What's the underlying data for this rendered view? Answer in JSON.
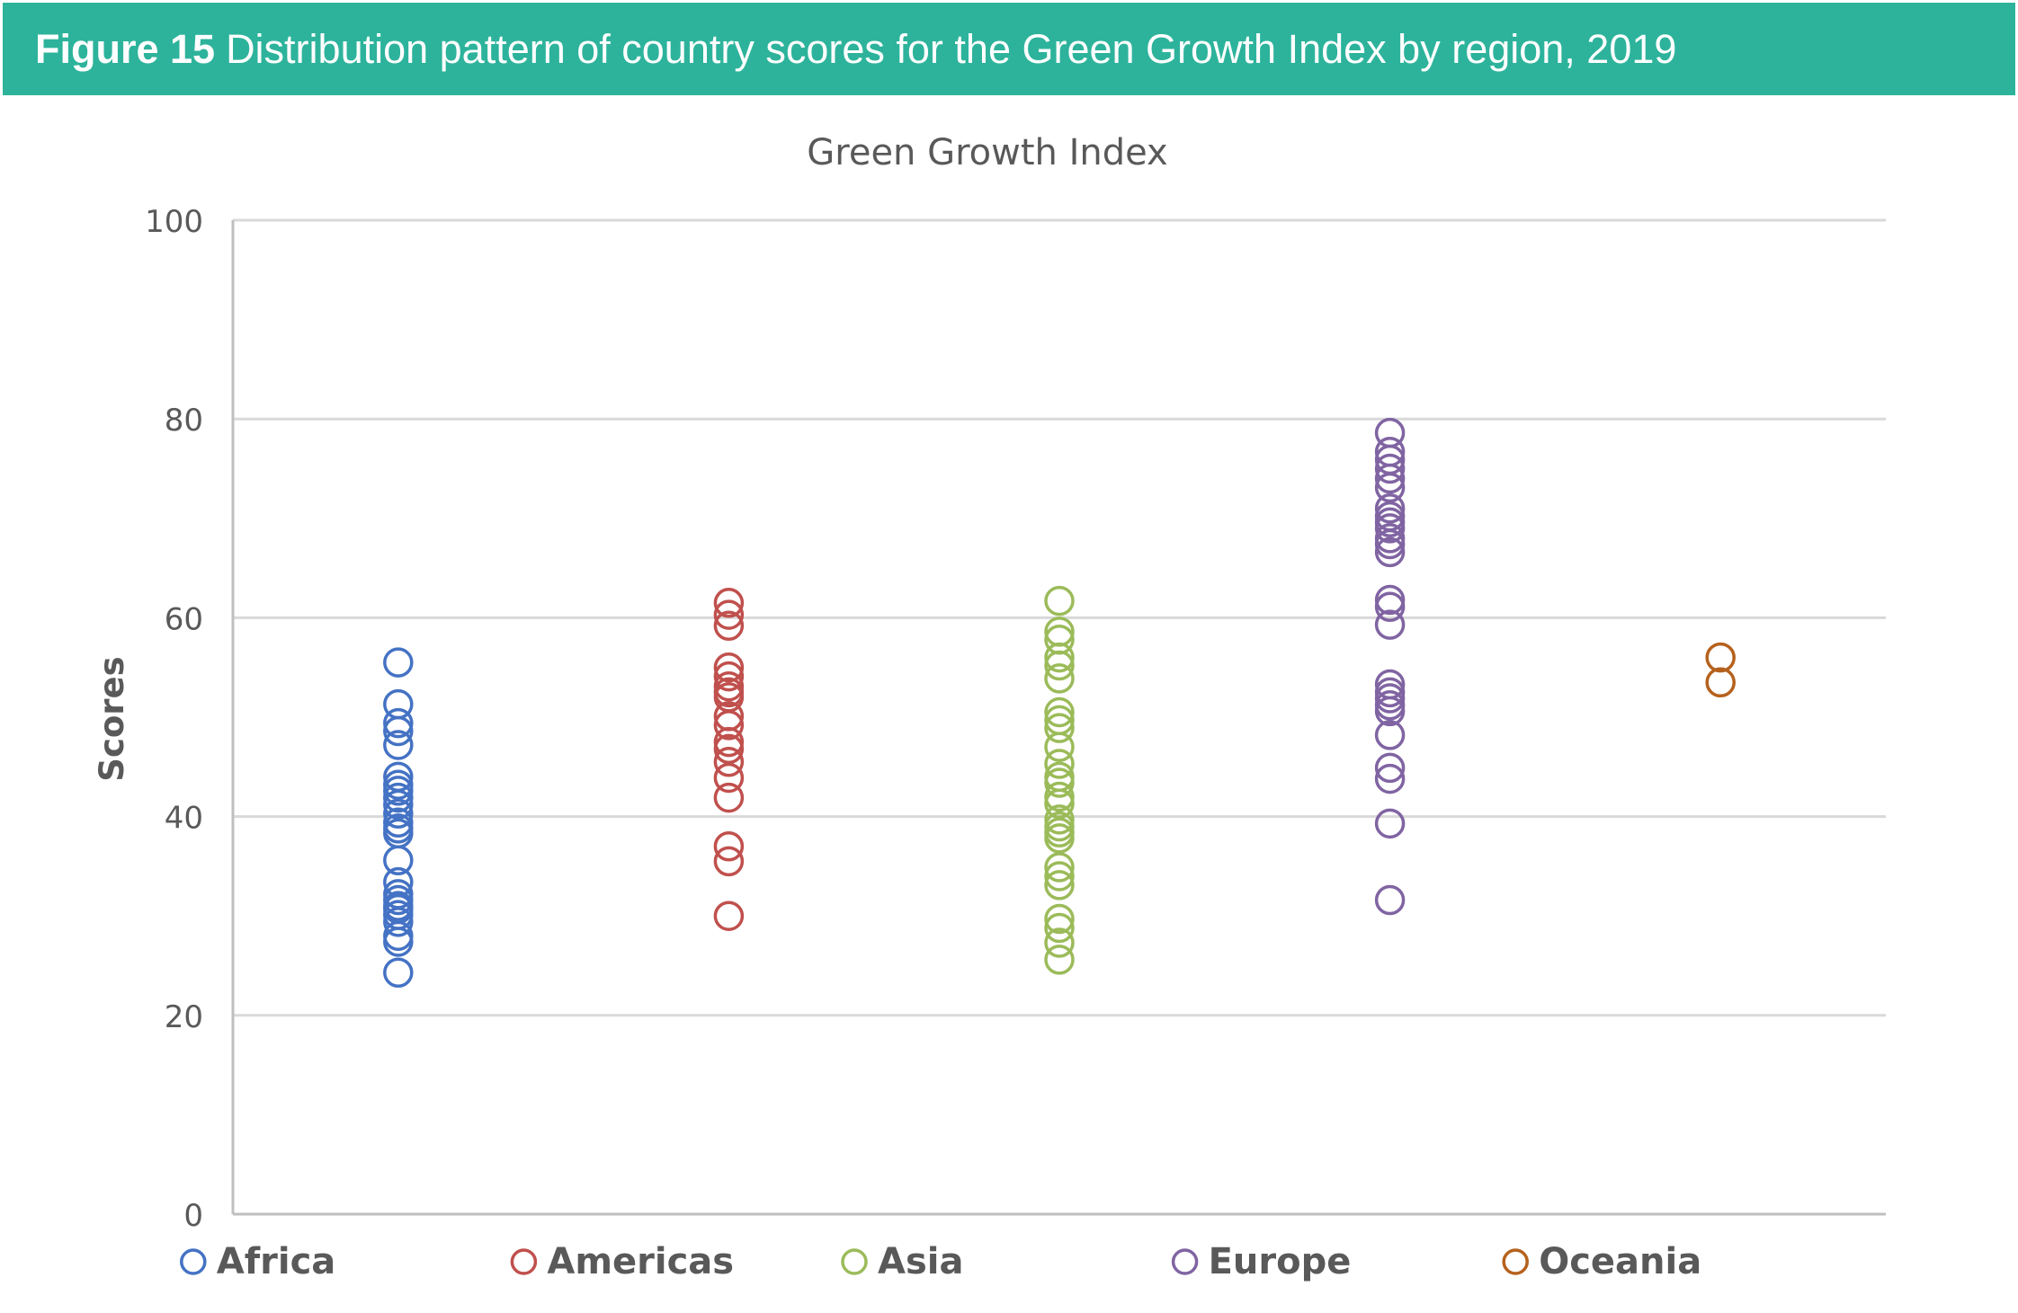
{
  "header": {
    "figure_label": "Figure 15",
    "caption": "Distribution pattern of country scores for the Green Growth Index by region, 2019",
    "background_color": "#2db39b"
  },
  "chart_data": {
    "type": "scatter",
    "title": "Green Growth Index",
    "xlabel": "",
    "ylabel": "Scores",
    "ylim": [
      0,
      100
    ],
    "yticks": [
      0,
      20,
      40,
      60,
      80,
      100
    ],
    "grid": true,
    "legend_position": "bottom",
    "categories": [
      "Africa",
      "Americas",
      "Asia",
      "Europe",
      "Oceania"
    ],
    "series": [
      {
        "name": "Africa",
        "color": "#4472c4",
        "values": [
          55.5,
          51.3,
          49.4,
          48.6,
          47.2,
          44.0,
          43.2,
          42.6,
          41.9,
          41.2,
          40.3,
          39.4,
          38.8,
          38.3,
          35.6,
          33.4,
          32.2,
          31.6,
          31.0,
          30.7,
          30.1,
          29.4,
          28.0,
          27.4,
          24.3
        ]
      },
      {
        "name": "Americas",
        "color": "#c0504d",
        "values": [
          61.5,
          60.3,
          59.2,
          55.0,
          54.1,
          53.1,
          52.5,
          52.0,
          50.1,
          49.2,
          47.5,
          46.8,
          45.5,
          43.9,
          41.9,
          37.0,
          35.5,
          30.0
        ]
      },
      {
        "name": "Asia",
        "color": "#9bbb59",
        "values": [
          61.7,
          58.6,
          57.8,
          56.0,
          55.2,
          53.9,
          50.5,
          49.7,
          48.9,
          47.0,
          45.3,
          44.0,
          43.4,
          42.0,
          41.3,
          39.7,
          39.0,
          38.4,
          37.8,
          34.9,
          34.0,
          33.1,
          29.7,
          28.8,
          27.3,
          25.6
        ]
      },
      {
        "name": "Europe",
        "color": "#8064a2",
        "values": [
          78.6,
          76.7,
          75.9,
          75.0,
          74.0,
          73.1,
          71.0,
          70.2,
          69.6,
          69.0,
          68.0,
          67.4,
          66.6,
          61.8,
          61.1,
          59.3,
          53.3,
          52.5,
          51.9,
          51.2,
          50.6,
          48.2,
          44.9,
          43.8,
          39.3,
          31.6
        ]
      },
      {
        "name": "Oceania",
        "color": "#b5611d",
        "values": [
          56.0,
          53.5
        ]
      }
    ]
  }
}
